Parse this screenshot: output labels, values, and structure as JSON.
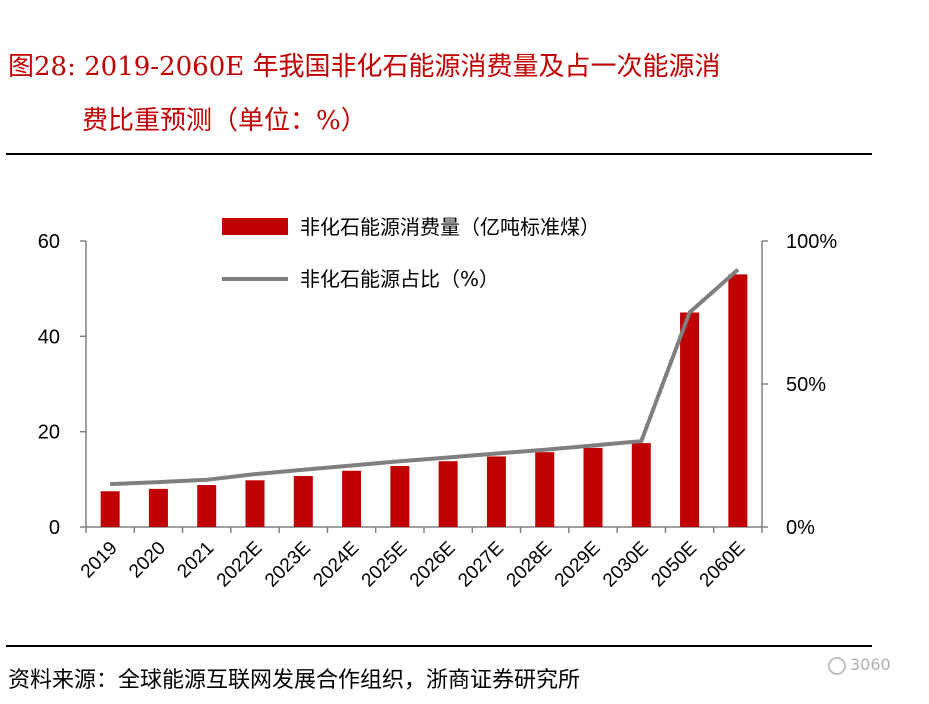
{
  "header": {
    "title_line1": "图28:   2019-2060E 年我国非化石能源消费量及占一次能源消",
    "title_line2": "费比重预测（单位：%）"
  },
  "footer": {
    "source": "资料来源：全球能源互联网发展合作组织，浙商证券研究所",
    "watermark": "3060"
  },
  "chart_data": {
    "type": "bar",
    "categories": [
      "2019",
      "2020",
      "2021",
      "2022E",
      "2023E",
      "2024E",
      "2025E",
      "2026E",
      "2027E",
      "2028E",
      "2029E",
      "2030E",
      "2050E",
      "2060E"
    ],
    "series": [
      {
        "name": "非化石能源消费量（亿吨标准煤）",
        "axis": "left",
        "type": "bar",
        "color": "#c00000",
        "values": [
          7.5,
          8,
          8.8,
          9.8,
          10.7,
          11.8,
          12.8,
          13.8,
          14.8,
          15.7,
          16.6,
          17.6,
          45,
          53
        ]
      },
      {
        "name": "非化石能源占比（%）",
        "axis": "right",
        "type": "line",
        "color": "#7f7f7f",
        "values": [
          15,
          15.7,
          16.5,
          18.5,
          20,
          21.5,
          23,
          24.3,
          25.7,
          27,
          28.5,
          30,
          75,
          90
        ]
      }
    ],
    "left_axis": {
      "ylim": [
        0,
        60
      ],
      "ticks": [
        "0",
        "20",
        "40",
        "60"
      ],
      "tick_values": [
        0,
        20,
        40,
        60
      ]
    },
    "right_axis": {
      "ylim": [
        0,
        100
      ],
      "ticks": [
        "0%",
        "50%",
        "100%"
      ],
      "tick_values": [
        0,
        50,
        100
      ]
    },
    "legend_placement": "top-center",
    "grid": false
  }
}
